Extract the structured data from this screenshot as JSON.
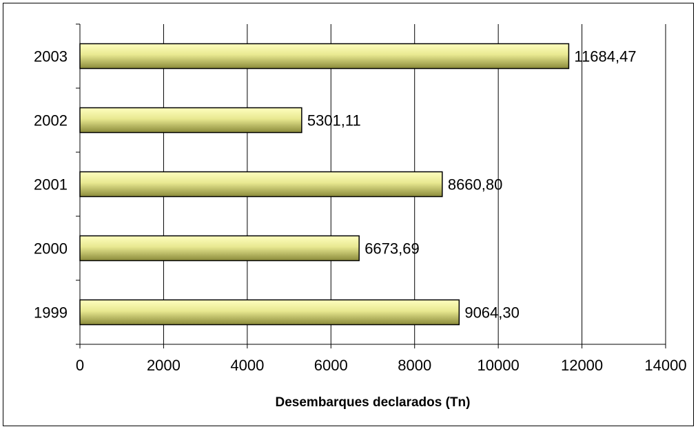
{
  "chart_data": {
    "type": "bar",
    "orientation": "horizontal",
    "categories": [
      "1999",
      "2000",
      "2001",
      "2002",
      "2003"
    ],
    "values": [
      9064.3,
      6673.69,
      8660.8,
      5301.11,
      11684.47
    ],
    "data_labels": [
      "9064,30",
      "6673,69",
      "8660,80",
      "5301,11",
      "11684,47"
    ],
    "xlabel": "Desembarques declarados (Tn)",
    "ylabel": "",
    "title": "",
    "xlim": [
      0,
      14000
    ],
    "xticks": [
      0,
      2000,
      4000,
      6000,
      8000,
      10000,
      12000,
      14000
    ],
    "xtick_labels": [
      "0",
      "2000",
      "4000",
      "6000",
      "8000",
      "10000",
      "12000",
      "14000"
    ],
    "grid": "vertical",
    "legend": "none",
    "colors": {
      "bar_light": "#ffffc0",
      "bar_dark": "#8a8a3a",
      "bar_border": "#000000",
      "grid": "#000000"
    }
  }
}
